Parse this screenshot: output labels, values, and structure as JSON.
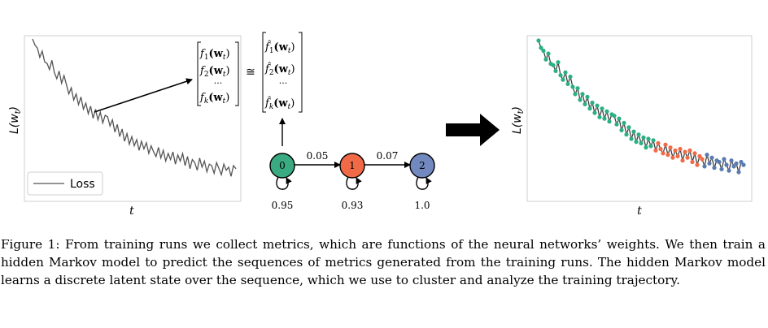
{
  "figure": {
    "left_plot": {
      "ylabel": "L(w",
      "ylabel_sub": "t",
      "ylabel_close": ")",
      "xlabel": "t",
      "legend_label": "Loss",
      "series_color": "#555555",
      "loss_values": [
        1.0,
        0.96,
        0.94,
        0.88,
        0.92,
        0.85,
        0.84,
        0.8,
        0.86,
        0.78,
        0.74,
        0.79,
        0.71,
        0.76,
        0.7,
        0.64,
        0.68,
        0.6,
        0.64,
        0.57,
        0.62,
        0.54,
        0.58,
        0.51,
        0.56,
        0.48,
        0.54,
        0.47,
        0.52,
        0.45,
        0.5,
        0.49,
        0.43,
        0.47,
        0.39,
        0.44,
        0.36,
        0.41,
        0.33,
        0.38,
        0.31,
        0.36,
        0.3,
        0.34,
        0.27,
        0.33,
        0.28,
        0.32,
        0.25,
        0.3,
        0.26,
        0.23,
        0.29,
        0.22,
        0.27,
        0.2,
        0.25,
        0.21,
        0.26,
        0.18,
        0.24,
        0.2,
        0.25,
        0.17,
        0.23,
        0.15,
        0.21,
        0.19,
        0.14,
        0.22,
        0.16,
        0.2,
        0.13,
        0.18,
        0.17,
        0.12,
        0.19,
        0.15,
        0.11,
        0.18,
        0.14,
        0.16,
        0.1,
        0.17,
        0.15
      ]
    },
    "equation": {
      "lhs": [
        "f",
        "f",
        "···",
        "f"
      ],
      "lhs_sub": [
        "1",
        "2",
        "",
        "k"
      ],
      "arg": "(w",
      "arg_sub": "t",
      "arg_close": ")",
      "relation": "≅",
      "rhs": [
        "f̂",
        "f̂",
        "···",
        "f̂"
      ],
      "rhs_sub": [
        "1",
        "2",
        "",
        "k"
      ]
    },
    "hmm": {
      "states": [
        {
          "label": "0",
          "color": "#3aaa82",
          "self_prob": "0.95"
        },
        {
          "label": "1",
          "color": "#f06a48",
          "self_prob": "0.93"
        },
        {
          "label": "2",
          "color": "#7289bf",
          "self_prob": "1.0"
        }
      ],
      "transitions": [
        "0.05",
        "0.07"
      ]
    },
    "right_plot": {
      "ylabel": "L(w",
      "ylabel_sub": "t",
      "ylabel_close": ")",
      "xlabel": "t",
      "line_color": "#333333",
      "state_colors": [
        "#2bb082",
        "#f06a48",
        "#5a7bb0"
      ],
      "loss_values": [
        1.0,
        0.95,
        0.93,
        0.87,
        0.91,
        0.84,
        0.83,
        0.79,
        0.85,
        0.76,
        0.73,
        0.78,
        0.7,
        0.75,
        0.68,
        0.63,
        0.67,
        0.59,
        0.63,
        0.56,
        0.61,
        0.53,
        0.57,
        0.5,
        0.55,
        0.47,
        0.53,
        0.46,
        0.51,
        0.44,
        0.49,
        0.48,
        0.42,
        0.46,
        0.38,
        0.43,
        0.35,
        0.4,
        0.32,
        0.37,
        0.3,
        0.35,
        0.29,
        0.33,
        0.26,
        0.32,
        0.27,
        0.31,
        0.24,
        0.29,
        0.25,
        0.22,
        0.28,
        0.21,
        0.26,
        0.19,
        0.24,
        0.2,
        0.25,
        0.17,
        0.23,
        0.19,
        0.24,
        0.16,
        0.22,
        0.14,
        0.2,
        0.18,
        0.13,
        0.21,
        0.15,
        0.19,
        0.12,
        0.17,
        0.16,
        0.11,
        0.18,
        0.14,
        0.1,
        0.17,
        0.13,
        0.15,
        0.09,
        0.16,
        0.14
      ],
      "states": [
        0,
        0,
        0,
        0,
        0,
        0,
        0,
        0,
        0,
        0,
        0,
        0,
        0,
        0,
        0,
        0,
        0,
        0,
        0,
        0,
        0,
        0,
        0,
        0,
        0,
        0,
        0,
        0,
        0,
        0,
        0,
        0,
        0,
        0,
        0,
        0,
        0,
        0,
        0,
        0,
        0,
        0,
        0,
        0,
        0,
        0,
        0,
        0,
        1,
        1,
        1,
        1,
        1,
        1,
        1,
        1,
        1,
        1,
        1,
        1,
        1,
        1,
        1,
        1,
        1,
        1,
        1,
        1,
        2,
        2,
        2,
        2,
        2,
        2,
        2,
        2,
        2,
        2,
        2,
        2,
        2,
        2,
        2,
        2,
        2
      ]
    }
  },
  "caption": "Figure 1: From training runs we collect metrics, which are functions of the neural networks’ weights. We then train a hidden Markov model to predict the sequences of metrics generated from the training runs. The hidden Markov model learns a discrete latent state over the sequence, which we use to cluster and analyze the training trajectory."
}
